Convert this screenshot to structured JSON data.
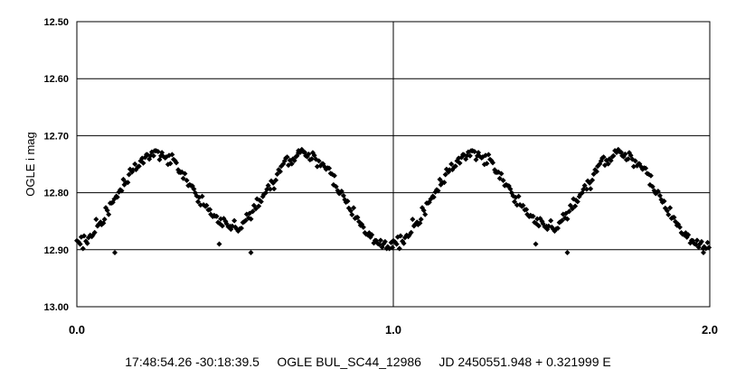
{
  "chart_data": {
    "type": "scatter",
    "ylabel": "OGLE i mag",
    "xlabel": "17:48:54.26 -30:18:39.5     OGLE BUL_SC44_12986     JD 2450551.948 + 0.321999 E",
    "xlim": [
      0.0,
      2.0
    ],
    "ylim": [
      12.5,
      13.0
    ],
    "y_inverted": true,
    "grid": "horizontal",
    "x_ticks": [
      "0.0",
      "1.0",
      "2.0"
    ],
    "y_ticks": [
      "12.50",
      "12.60",
      "12.70",
      "12.80",
      "12.90",
      "13.00"
    ],
    "marker": "diamond",
    "color": "#000000",
    "phase_curve": {
      "phase": [
        0.0,
        0.05,
        0.1,
        0.15,
        0.2,
        0.25,
        0.3,
        0.35,
        0.4,
        0.45,
        0.5,
        0.55,
        0.6,
        0.65,
        0.7,
        0.75,
        0.8,
        0.85,
        0.9,
        0.95,
        1.0
      ],
      "mag": [
        12.895,
        12.87,
        12.83,
        12.78,
        12.745,
        12.725,
        12.745,
        12.78,
        12.82,
        12.85,
        12.865,
        12.84,
        12.8,
        12.755,
        12.73,
        12.74,
        12.765,
        12.81,
        12.86,
        12.89,
        12.895
      ]
    },
    "points_per_cycle": 220,
    "scatter_mag": 0.012,
    "outliers": [
      {
        "x": 0.12,
        "y": 12.905
      },
      {
        "x": 0.45,
        "y": 12.89
      },
      {
        "x": 0.55,
        "y": 12.905
      },
      {
        "x": 0.7,
        "y": 12.73
      },
      {
        "x": 1.45,
        "y": 12.89
      },
      {
        "x": 1.55,
        "y": 12.905
      },
      {
        "x": 1.98,
        "y": 12.905
      }
    ]
  }
}
